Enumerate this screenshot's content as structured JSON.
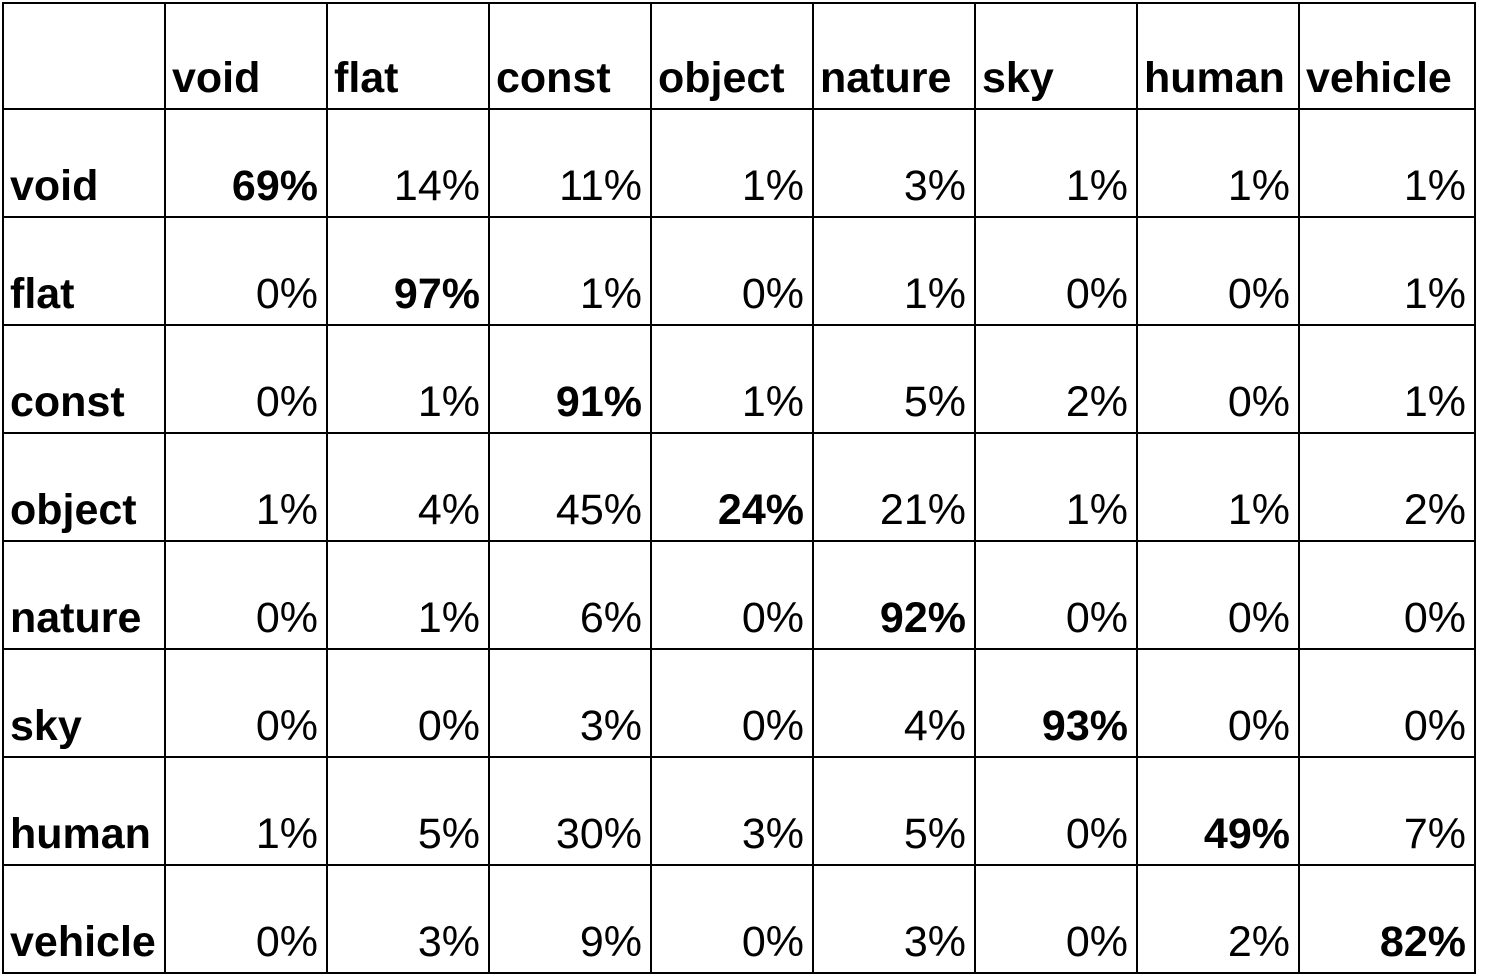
{
  "chart_data": {
    "type": "table",
    "columns": [
      "void",
      "flat",
      "const",
      "object",
      "nature",
      "sky",
      "human",
      "vehicle"
    ],
    "rows": [
      {
        "label": "void",
        "values": [
          "69%",
          "14%",
          "11%",
          "1%",
          "3%",
          "1%",
          "1%",
          "1%"
        ]
      },
      {
        "label": "flat",
        "values": [
          "0%",
          "97%",
          "1%",
          "0%",
          "1%",
          "0%",
          "0%",
          "1%"
        ]
      },
      {
        "label": "const",
        "values": [
          "0%",
          "1%",
          "91%",
          "1%",
          "5%",
          "2%",
          "0%",
          "1%"
        ]
      },
      {
        "label": "object",
        "values": [
          "1%",
          "4%",
          "45%",
          "24%",
          "21%",
          "1%",
          "1%",
          "2%"
        ]
      },
      {
        "label": "nature",
        "values": [
          "0%",
          "1%",
          "6%",
          "0%",
          "92%",
          "0%",
          "0%",
          "0%"
        ]
      },
      {
        "label": "sky",
        "values": [
          "0%",
          "0%",
          "3%",
          "0%",
          "4%",
          "93%",
          "0%",
          "0%"
        ]
      },
      {
        "label": "human",
        "values": [
          "1%",
          "5%",
          "30%",
          "3%",
          "5%",
          "0%",
          "49%",
          "7%"
        ]
      },
      {
        "label": "vehicle",
        "values": [
          "0%",
          "3%",
          "9%",
          "0%",
          "3%",
          "0%",
          "2%",
          "82%"
        ]
      }
    ],
    "bold_diagonal": true
  }
}
